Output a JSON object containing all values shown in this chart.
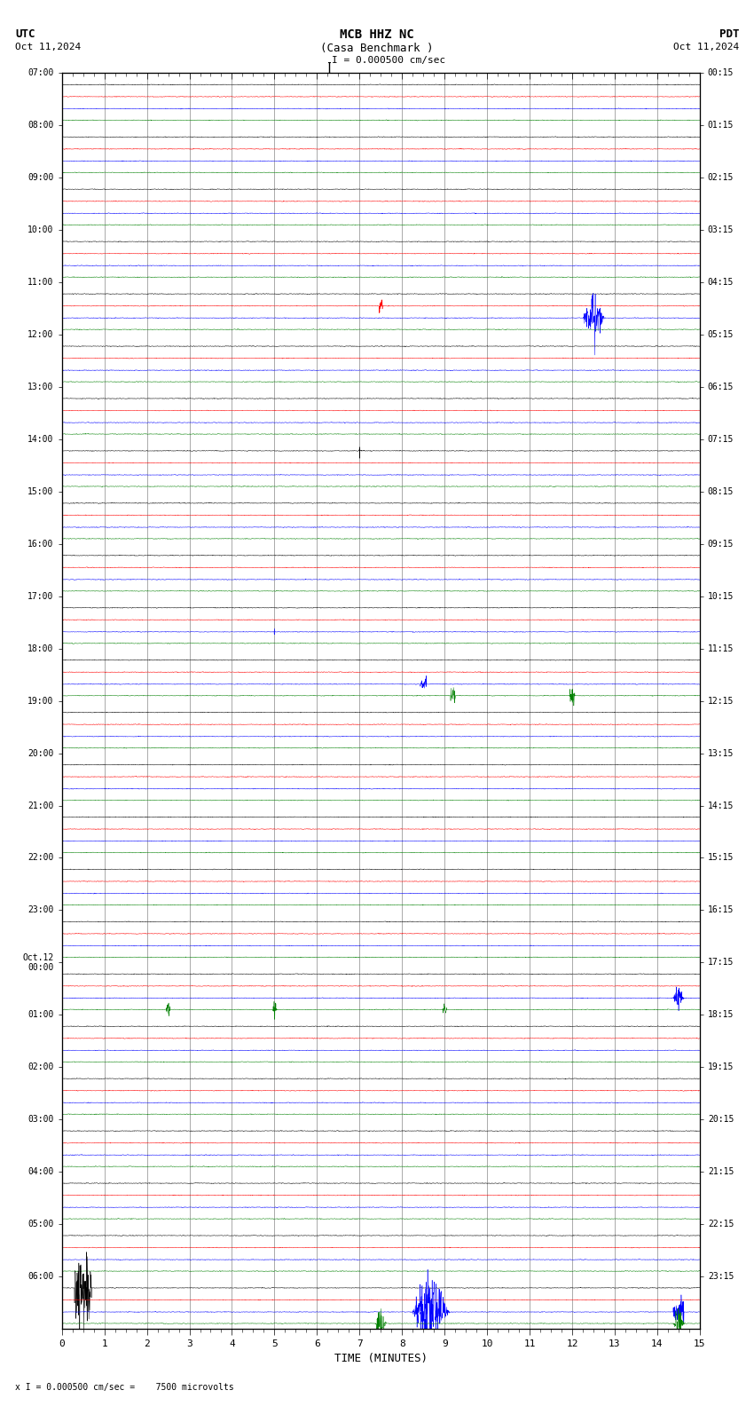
{
  "title_line1": "MCB HHZ NC",
  "title_line2": "(Casa Benchmark )",
  "scale_label": "I = 0.000500 cm/sec",
  "utc_label": "UTC",
  "utc_date": "Oct 11,2024",
  "pdt_label": "PDT",
  "pdt_date": "Oct 11,2024",
  "xlabel": "TIME (MINUTES)",
  "bottom_note": "x I = 0.000500 cm/sec =    7500 microvolts",
  "left_times": [
    "07:00",
    "08:00",
    "09:00",
    "10:00",
    "11:00",
    "12:00",
    "13:00",
    "14:00",
    "15:00",
    "16:00",
    "17:00",
    "18:00",
    "19:00",
    "20:00",
    "21:00",
    "22:00",
    "23:00",
    "Oct.12\n00:00",
    "01:00",
    "02:00",
    "03:00",
    "04:00",
    "05:00",
    "06:00"
  ],
  "right_times": [
    "00:15",
    "01:15",
    "02:15",
    "03:15",
    "04:15",
    "05:15",
    "06:15",
    "07:15",
    "08:15",
    "09:15",
    "10:15",
    "11:15",
    "12:15",
    "13:15",
    "14:15",
    "15:15",
    "16:15",
    "17:15",
    "18:15",
    "19:15",
    "20:15",
    "21:15",
    "22:15",
    "23:15"
  ],
  "n_rows": 24,
  "n_traces_per_row": 4,
  "colors": [
    "black",
    "red",
    "blue",
    "green"
  ],
  "bg_color": "#ffffff",
  "noise_amplitude": 0.012,
  "line_width": 0.35,
  "figsize": [
    8.5,
    15.84
  ],
  "dpi": 100,
  "xmin": 0,
  "xmax": 15,
  "xticks": [
    0,
    1,
    2,
    3,
    4,
    5,
    6,
    7,
    8,
    9,
    10,
    11,
    12,
    13,
    14,
    15
  ],
  "grid_color": "#888888",
  "grid_lw": 0.5
}
